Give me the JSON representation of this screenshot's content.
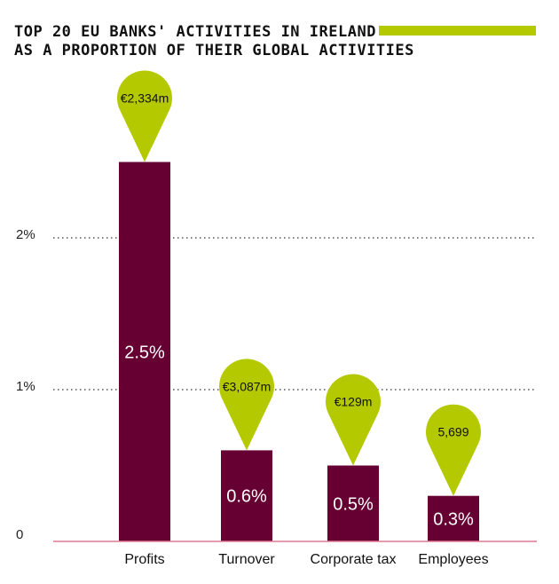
{
  "chart_data": {
    "type": "bar",
    "title_lines": [
      "TOP 20 EU BANKS' ACTIVITIES IN IRELAND",
      "AS A PROPORTION OF THEIR GLOBAL ACTIVITIES"
    ],
    "categories": [
      "Profits",
      "Turnover",
      "Corporate tax",
      "Employees"
    ],
    "values": [
      2.5,
      0.6,
      0.5,
      0.3
    ],
    "value_labels": [
      "2.5%",
      "0.6%",
      "0.5%",
      "0.3%"
    ],
    "annotations": [
      "€2,334m",
      "€3,087m",
      "€129m",
      "5,699"
    ],
    "y_ticks": [
      {
        "value": 0,
        "label": "0"
      },
      {
        "value": 1,
        "label": "1%"
      },
      {
        "value": 2,
        "label": "2%"
      }
    ],
    "ylim": [
      0,
      2.6
    ],
    "xlabel": "",
    "ylabel": "",
    "grid": "dotted-horizontal",
    "legend": "none",
    "colors": {
      "bar": "#660033",
      "pin": "#b5c900",
      "accent_bar": "#b5c900",
      "baseline": "#e07a90",
      "grid": "#333333"
    }
  }
}
